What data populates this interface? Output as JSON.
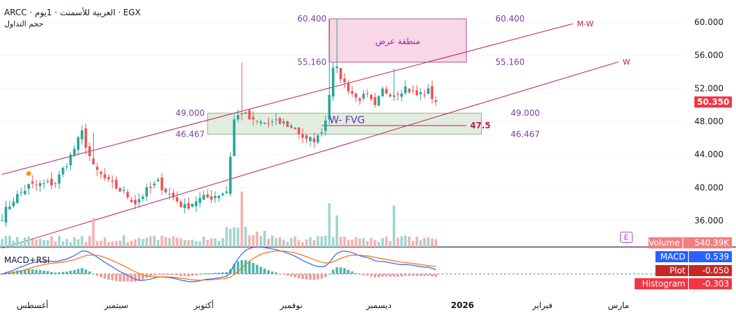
{
  "header": {
    "symbol_line": "ARCC · العربية للأسمنت · 1يوم · EGX",
    "subtitle": "حجم التداول"
  },
  "price_axis": {
    "ticks": [
      {
        "label": "60.000",
        "value": 60
      },
      {
        "label": "56.000",
        "value": 56
      },
      {
        "label": "52.000",
        "value": 52
      },
      {
        "label": "48.000",
        "value": 48
      },
      {
        "label": "44.000",
        "value": 44
      },
      {
        "label": "40.000",
        "value": 40
      },
      {
        "label": "36.000",
        "value": 36
      }
    ],
    "last_price_label": "50.350",
    "last_price": 50.35,
    "last_price_color": "#f23645"
  },
  "time_axis": {
    "labels": [
      {
        "label": "أغسطس",
        "index": 8
      },
      {
        "label": "سبتمبر",
        "index": 30
      },
      {
        "label": "أكتوبر",
        "index": 53
      },
      {
        "label": "نوفمبر",
        "index": 76
      },
      {
        "label": "ديسمبر",
        "index": 99
      },
      {
        "label": "2026",
        "index": 121,
        "bold": true
      },
      {
        "label": "فبراير",
        "index": 142
      },
      {
        "label": "مارس",
        "index": 162
      }
    ]
  },
  "annotations": {
    "supply_zone": {
      "label": "منطقة عرض",
      "top": 60.4,
      "bottom": 55.16,
      "start_index": 86,
      "end_index": 122,
      "top_label": "60.400",
      "bottom_label": "55.160",
      "color": "#f8d7e6"
    },
    "fvg_zone": {
      "label": "W- FVG",
      "top": 49.0,
      "bottom": 46.467,
      "start_index": 54,
      "end_index": 126,
      "top_label": "49.000",
      "bottom_label": "46.467",
      "color": "#dcead9"
    },
    "fvg_mid": {
      "label": "47.5",
      "value": 47.5
    },
    "trend_upper": {
      "label": "M-W",
      "start": [
        0,
        41.6
      ],
      "end": [
        150,
        59.8
      ]
    },
    "trend_lower": {
      "label": "W",
      "start": [
        0,
        32.7
      ],
      "end": [
        162,
        55.2
      ]
    }
  },
  "indicators": {
    "volume": {
      "label": "Volume",
      "value": "540.39K",
      "color": "#f08080"
    },
    "macd_panel_title": "MACD+RSI",
    "macd": {
      "label": "MACD",
      "value": "0.539",
      "color": "#2962ff"
    },
    "plot": {
      "label": "Plot",
      "value": "-0.050",
      "color": "#c62828"
    },
    "histogram": {
      "label": "Histogram",
      "value": "-0.303",
      "color": "#f23645"
    }
  },
  "chart_data": {
    "type": "candlestick",
    "title": "ARCC · العربية للأسمنت · 1يوم · EGX",
    "ylim": [
      33.5,
      62
    ],
    "x_index_max": 190,
    "waypoints": [
      [
        0,
        36.6
      ],
      [
        3,
        38.6
      ],
      [
        7,
        40.2
      ],
      [
        11,
        40.4
      ],
      [
        14,
        40.6
      ],
      [
        18,
        43.8
      ],
      [
        21,
        46.6
      ],
      [
        24,
        42.4
      ],
      [
        28,
        40.6
      ],
      [
        32,
        39.4
      ],
      [
        35,
        38.2
      ],
      [
        38,
        39.6
      ],
      [
        41,
        40.6
      ],
      [
        44,
        39.2
      ],
      [
        48,
        37.6
      ],
      [
        51,
        38.5
      ],
      [
        55,
        38.9
      ],
      [
        59,
        39.6
      ],
      [
        61,
        48.2
      ],
      [
        63,
        49.1
      ],
      [
        66,
        47.9
      ],
      [
        70,
        47.8
      ],
      [
        74,
        47.8
      ],
      [
        77,
        47.2
      ],
      [
        80,
        45.6
      ],
      [
        83,
        46.0
      ],
      [
        85,
        48.2
      ],
      [
        87,
        54.9
      ],
      [
        90,
        52.6
      ],
      [
        93,
        50.8
      ],
      [
        96,
        51.0
      ],
      [
        98,
        49.6
      ],
      [
        100,
        51.7
      ],
      [
        103,
        51.4
      ],
      [
        106,
        52.1
      ],
      [
        109,
        51.2
      ],
      [
        112,
        51.6
      ],
      [
        114,
        50.35
      ]
    ],
    "events": [
      [
        24,
        46.6,
        "spike"
      ],
      [
        63,
        55.1,
        "spike"
      ],
      [
        86,
        58.2,
        "spike"
      ],
      [
        88,
        60.4,
        "spike"
      ],
      [
        103,
        54.4,
        "spike"
      ]
    ],
    "volume_ylim": [
      0,
      700000
    ],
    "macd_ylim": [
      -1.6,
      2.1
    ],
    "zero_line": 0
  }
}
